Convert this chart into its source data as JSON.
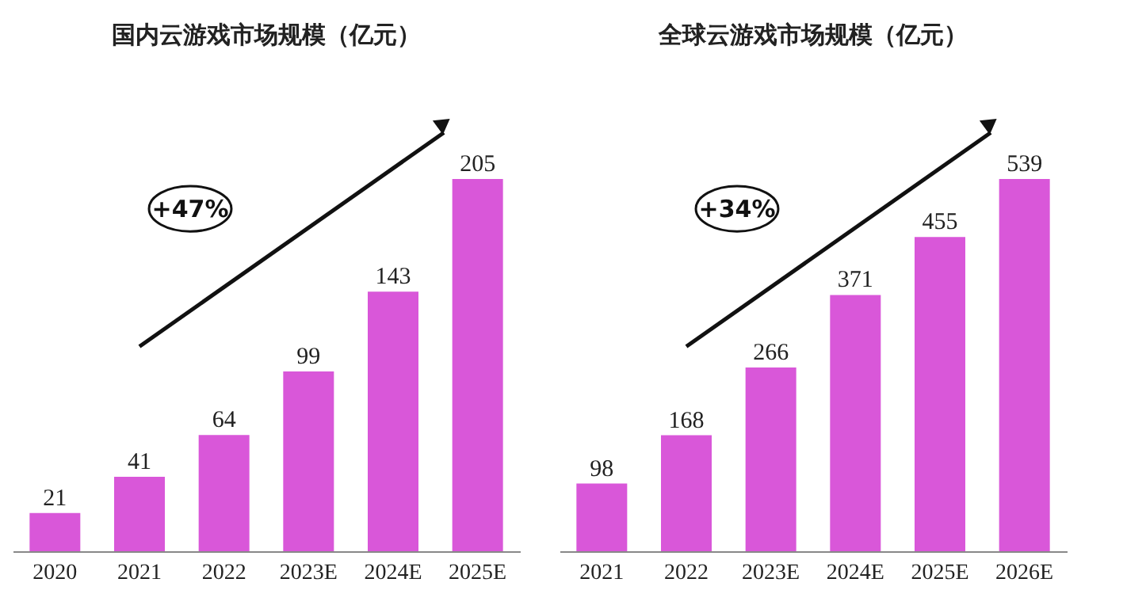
{
  "chart_data": [
    {
      "type": "bar",
      "title": "国内云游戏市场规模（亿元）",
      "categories": [
        "2020",
        "2021",
        "2022",
        "2023E",
        "2024E",
        "2025E"
      ],
      "values": [
        21,
        41,
        64,
        99,
        143,
        205
      ],
      "color": "#d957d9",
      "data_labels": true,
      "annotations": [
        "+47%"
      ]
    },
    {
      "type": "bar",
      "title": "全球云游戏市场规模（亿元）",
      "categories": [
        "2021",
        "2022",
        "2023E",
        "2024E",
        "2025E",
        "2026E"
      ],
      "values": [
        98,
        168,
        266,
        371,
        455,
        539
      ],
      "color": "#d957d9",
      "data_labels": true,
      "annotations": [
        "+34%"
      ]
    }
  ]
}
